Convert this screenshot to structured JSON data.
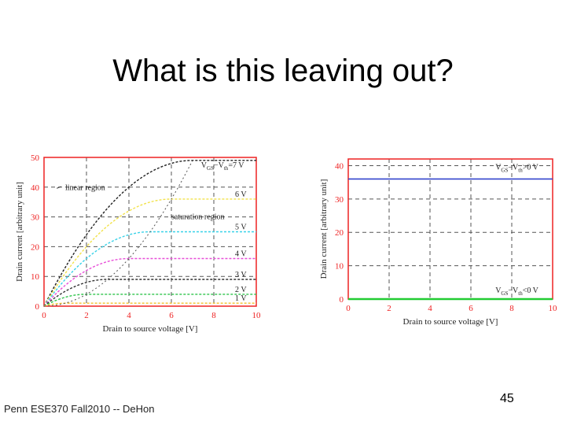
{
  "slide": {
    "title": "What is this leaving out?",
    "footer": "Penn ESE370 Fall2010 -- DeHon",
    "page_number": "45"
  },
  "colors": {
    "axis_red": "#ee2222",
    "grid_black": "#555555"
  },
  "chart_data": [
    {
      "type": "line",
      "xlabel": "Drain to source voltage [V]",
      "ylabel": "Drain current [arbitrary unit]",
      "xlim": [
        0,
        10
      ],
      "ylim": [
        0,
        50
      ],
      "x_ticks": [
        "0",
        "2",
        "4",
        "6",
        "8",
        "10"
      ],
      "y_ticks": [
        "0",
        "10",
        "20",
        "30",
        "40",
        "50"
      ],
      "grid": true,
      "annotations": {
        "linear_region": "linear region",
        "saturation_region": "saturation region",
        "vgs_top": "VGS−Vth=7 V"
      },
      "series": [
        {
          "name": "7 V",
          "label": "VGS−Vth=7 V",
          "vov": 7,
          "color": "#222222"
        },
        {
          "name": "6 V",
          "label": "6 V",
          "vov": 6,
          "color": "#f2e24a"
        },
        {
          "name": "5 V",
          "label": "5 V",
          "vov": 5,
          "color": "#39d2e8"
        },
        {
          "name": "4 V",
          "label": "4 V",
          "vov": 4,
          "color": "#e84fd8"
        },
        {
          "name": "3 V",
          "label": "3 V",
          "vov": 3,
          "color": "#333333"
        },
        {
          "name": "2 V",
          "label": "2 V",
          "vov": 2,
          "color": "#2ec44a"
        },
        {
          "name": "1 V",
          "label": "1 V",
          "vov": 1,
          "color": "#f2c22a"
        }
      ],
      "boundary": {
        "name": "saturation boundary",
        "x": [
          0,
          7
        ],
        "y": [
          0,
          49
        ]
      }
    },
    {
      "type": "line",
      "xlabel": "Drain to source voltage [V]",
      "ylabel": "Drain current [arbitrary unit]",
      "xlim": [
        0,
        10
      ],
      "ylim": [
        0,
        42
      ],
      "x_ticks": [
        "0",
        "2",
        "4",
        "6",
        "8",
        "10"
      ],
      "y_ticks": [
        "0",
        "10",
        "20",
        "30",
        "40"
      ],
      "grid": true,
      "series": [
        {
          "name": "VGS−Vth>0 V",
          "label": "VGS−Vth>0 V",
          "x": [
            0,
            10
          ],
          "y": [
            36,
            36
          ],
          "color": "#3344cc"
        },
        {
          "name": "VGS−Vth<0 V",
          "label": "VGS−Vth<0 V",
          "x": [
            0,
            10
          ],
          "y": [
            0,
            0
          ],
          "color": "#22cc33"
        }
      ]
    }
  ]
}
